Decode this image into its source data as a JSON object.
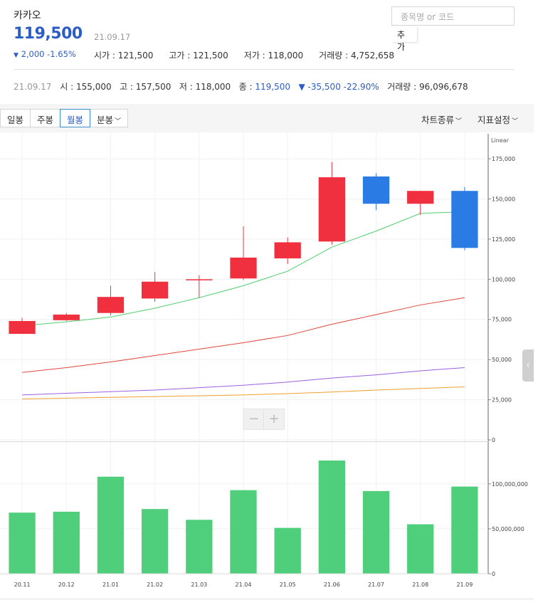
{
  "stock": {
    "name": "카카오",
    "price": "119,500",
    "date": "21.09.17",
    "change": "2,000 -1.65%",
    "change_arrow": "▼",
    "open": "시가 : 121,500",
    "high": "고가 : 121,500",
    "low": "저가 : 118,000",
    "volume": "거래량 : 4,752,658"
  },
  "search": {
    "placeholder": "종목명 or 코드",
    "add_label": "추가"
  },
  "period": {
    "date": "21.09.17",
    "open": "시 : 155,000",
    "high": "고 : 157,500",
    "low": "저 : 118,000",
    "close_label": "종 :",
    "close_value": "119,500",
    "change": "▼ -35,500 -22.90%",
    "volume": "거래량 : 96,096,678"
  },
  "toolbar": {
    "tabs": [
      "일봉",
      "주봉",
      "월봉",
      "분봉"
    ],
    "active_tab": "월봉",
    "chart_type_label": "차트종류",
    "indicator_label": "지표설정"
  },
  "colors": {
    "up": "#f0303f",
    "down": "#2a7be4",
    "volume": "#4fcf7c",
    "ma5": "#4fcf6f",
    "ma20": "#e0463c",
    "ma60": "#9b5fe0",
    "ma120": "#f0a030",
    "accent": "#2c5dc4"
  },
  "icons": {
    "zoom_out": "−",
    "zoom_in": "+",
    "side_toggle": "‹",
    "chevron": "﹀"
  },
  "chart_data": {
    "type": "candlestick",
    "scale_label": "Linear",
    "x": [
      "20.11",
      "20.12",
      "21.01",
      "21.02",
      "21.03",
      "21.04",
      "21.05",
      "21.06",
      "21.07",
      "21.08",
      "21.09"
    ],
    "price_axis": {
      "ylim": [
        0,
        187000
      ],
      "ticks": [
        0,
        25000,
        50000,
        75000,
        100000,
        125000,
        150000,
        175000
      ],
      "tick_labels": [
        "0",
        "25,000",
        "50,000",
        "75,000",
        "100,000",
        "125,000",
        "150,000",
        "175,000"
      ]
    },
    "ohlc": [
      {
        "open": 66000,
        "high": 76000,
        "low": 66000,
        "close": 74000
      },
      {
        "open": 74500,
        "high": 79000,
        "low": 74000,
        "close": 78000
      },
      {
        "open": 79000,
        "high": 96000,
        "low": 77500,
        "close": 89000
      },
      {
        "open": 88000,
        "high": 104500,
        "low": 86000,
        "close": 98500
      },
      {
        "open": 100000,
        "high": 102500,
        "low": 88500,
        "close": 100000
      },
      {
        "open": 100500,
        "high": 133000,
        "low": 99500,
        "close": 113500
      },
      {
        "open": 113000,
        "high": 126000,
        "low": 109500,
        "close": 123000
      },
      {
        "open": 123500,
        "high": 173000,
        "low": 121500,
        "close": 163500
      },
      {
        "open": 164000,
        "high": 166000,
        "low": 143000,
        "close": 147000
      },
      {
        "open": 147000,
        "high": 155000,
        "low": 140000,
        "close": 155000
      },
      {
        "open": 155000,
        "high": 157500,
        "low": 118000,
        "close": 119500
      }
    ],
    "moving_averages": [
      {
        "key": "ma5",
        "values": [
          71000,
          73500,
          76500,
          82000,
          88500,
          96000,
          105000,
          120000,
          130000,
          141000,
          142000
        ]
      },
      {
        "key": "ma20",
        "values": [
          42000,
          45000,
          48500,
          52500,
          56500,
          60500,
          65000,
          72000,
          78000,
          84000,
          88500
        ]
      },
      {
        "key": "ma60",
        "values": [
          28000,
          29000,
          30000,
          31000,
          32500,
          34000,
          36000,
          38500,
          40500,
          43000,
          45000
        ]
      },
      {
        "key": "ma120",
        "values": [
          25500,
          26000,
          26500,
          27000,
          27500,
          28000,
          28800,
          29800,
          31000,
          32000,
          33000
        ]
      }
    ],
    "volume_axis": {
      "ylim": [
        0,
        145000000
      ],
      "ticks": [
        0,
        50000000,
        100000000
      ],
      "tick_labels": [
        "0",
        "50,000,000",
        "100,000,000"
      ]
    },
    "volume": [
      68000000,
      69000000,
      108000000,
      72000000,
      60000000,
      93000000,
      51000000,
      126000000,
      92000000,
      55000000,
      97000000
    ]
  }
}
